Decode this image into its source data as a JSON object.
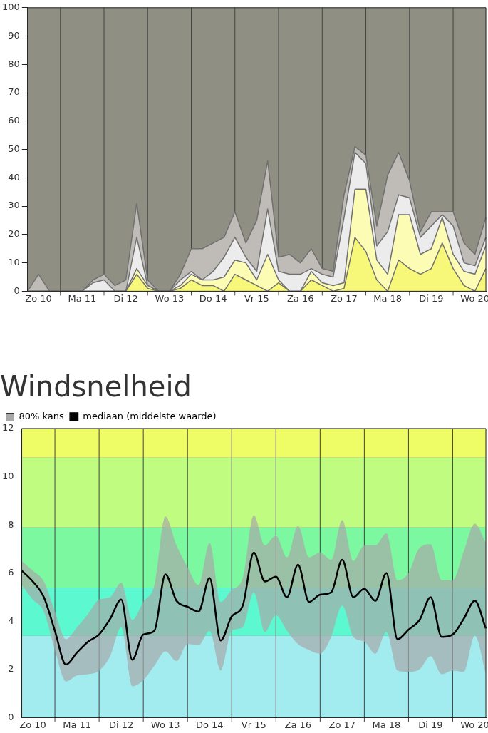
{
  "chart_data": [
    {
      "type": "area",
      "categories": [
        null,
        "Zo 10",
        null,
        null,
        null,
        "Ma 11",
        null,
        null,
        null,
        "Di 12",
        null,
        null,
        null,
        "Wo 13",
        null,
        null,
        null,
        "Do 14",
        null,
        null,
        null,
        "Vr 15",
        null,
        null,
        null,
        "Za 16",
        null,
        null,
        null,
        "Zo 17",
        null,
        null,
        null,
        "Ma 18",
        null,
        null,
        null,
        "Di 19",
        null,
        null,
        null,
        "Wo 20",
        null
      ],
      "ylim": [
        0,
        100
      ],
      "yticks": [
        0,
        10,
        20,
        30,
        40,
        50,
        60,
        70,
        80,
        90,
        100
      ],
      "grid": true,
      "series": [
        {
          "color": "#f7f77a",
          "values": [
            0,
            0,
            0,
            0,
            0,
            0,
            0,
            0,
            0,
            0,
            6,
            1,
            0,
            0,
            1,
            4,
            2,
            2,
            0,
            6,
            4,
            2,
            0,
            3,
            0,
            0,
            4,
            2,
            0,
            1,
            19,
            14,
            4,
            0,
            11,
            8,
            6,
            8,
            17,
            8,
            2,
            0,
            8
          ]
        },
        {
          "color": "#fdfcb4",
          "values": [
            0,
            0,
            0,
            0,
            0,
            0,
            0,
            0,
            0,
            0,
            8,
            2,
            0,
            0,
            2,
            6,
            4,
            4,
            5,
            11,
            10,
            4,
            13,
            4,
            0,
            0,
            7,
            3,
            2,
            3,
            36,
            36,
            11,
            6,
            27,
            27,
            13,
            15,
            26,
            13,
            7,
            6,
            16
          ]
        },
        {
          "color": "#ececec",
          "values": [
            0,
            0,
            0,
            0,
            0,
            0,
            3,
            4,
            0,
            0,
            19,
            2,
            0,
            0,
            4,
            7,
            4,
            7,
            12,
            19,
            12,
            7,
            29,
            7,
            6,
            6,
            8,
            6,
            5,
            26,
            49,
            45,
            16,
            21,
            34,
            33,
            19,
            23,
            27,
            23,
            10,
            9,
            19
          ]
        },
        {
          "color": "#bfbcb8",
          "values": [
            0,
            6,
            0,
            0,
            0,
            0,
            4,
            6,
            2,
            4,
            31,
            4,
            0,
            0,
            6,
            15,
            15,
            17,
            19,
            28,
            17,
            25,
            46,
            12,
            13,
            10,
            15,
            8,
            7,
            34,
            51,
            48,
            23,
            41,
            49,
            39,
            21,
            28,
            28,
            28,
            17,
            13,
            26
          ]
        }
      ]
    },
    {
      "type": "line",
      "title": "Windsnelheid",
      "categories": [
        null,
        "Zo 10",
        null,
        null,
        null,
        "Ma 11",
        null,
        null,
        null,
        "Di 12",
        null,
        null,
        null,
        "Wo 13",
        null,
        null,
        null,
        "Do 14",
        null,
        null,
        null,
        "Vr 15",
        null,
        null,
        null,
        "Za 16",
        null,
        null,
        null,
        "Zo 17",
        null,
        null,
        null,
        "Ma 18",
        null,
        null,
        null,
        "Di 19",
        null,
        null,
        null,
        "Wo 20",
        null
      ],
      "ylim": [
        0,
        12
      ],
      "yticks": [
        0,
        2,
        4,
        6,
        8,
        10,
        12
      ],
      "grid": "x",
      "legend": "top left",
      "annotations": [
        "80% kans"
      ],
      "bands": [
        {
          "axis": "y",
          "from": 0,
          "to": 3.4,
          "color": "#a2ecf0"
        },
        {
          "axis": "y",
          "from": 3.4,
          "to": 5.4,
          "color": "#5cf8d0"
        },
        {
          "axis": "y",
          "from": 5.4,
          "to": 7.9,
          "color": "#7cf8a0"
        },
        {
          "axis": "y",
          "from": 7.9,
          "to": 10.8,
          "color": "#c0fc80"
        },
        {
          "axis": "y",
          "from": 10.8,
          "to": 12,
          "color": "#eefc66"
        }
      ],
      "series": [
        {
          "name": "mediaan (middelste waarde)",
          "color": "#000000",
          "values": [
            6.1,
            5.65,
            5.0,
            3.6,
            2.2,
            2.7,
            3.15,
            3.45,
            4.1,
            4.9,
            2.4,
            3.45,
            3.6,
            5.95,
            4.85,
            4.6,
            4.4,
            5.8,
            3.2,
            4.2,
            4.65,
            6.85,
            5.65,
            5.85,
            5.0,
            6.35,
            4.8,
            5.1,
            5.2,
            6.55,
            5.0,
            5.35,
            4.85,
            6.0,
            3.25,
            3.65,
            4.05,
            5.0,
            3.35,
            3.45,
            4.1,
            4.85,
            3.7
          ],
          "lower": [
            5.5,
            4.9,
            4.4,
            2.8,
            1.5,
            1.75,
            1.8,
            1.95,
            2.55,
            3.75,
            1.3,
            1.55,
            2.15,
            2.75,
            2.35,
            3.05,
            3.0,
            3.6,
            1.95,
            3.6,
            3.75,
            5.2,
            3.55,
            4.25,
            3.6,
            3.05,
            2.8,
            2.65,
            3.35,
            4.65,
            3.35,
            3.15,
            2.65,
            3.55,
            1.95,
            1.9,
            2.0,
            2.55,
            1.8,
            1.95,
            1.9,
            3.4,
            1.8
          ],
          "upper": [
            6.5,
            6.1,
            5.65,
            4.4,
            3.25,
            3.75,
            4.3,
            4.9,
            5.0,
            5.6,
            4.05,
            4.8,
            5.5,
            8.35,
            7.15,
            6.25,
            5.5,
            7.25,
            4.8,
            5.3,
            5.8,
            8.4,
            7.15,
            7.55,
            6.65,
            7.95,
            6.65,
            6.85,
            6.55,
            8.2,
            6.5,
            7.15,
            7.15,
            7.65,
            5.7,
            6.0,
            7.05,
            7.2,
            5.7,
            5.7,
            6.9,
            8.05,
            7.25
          ]
        }
      ]
    }
  ]
}
